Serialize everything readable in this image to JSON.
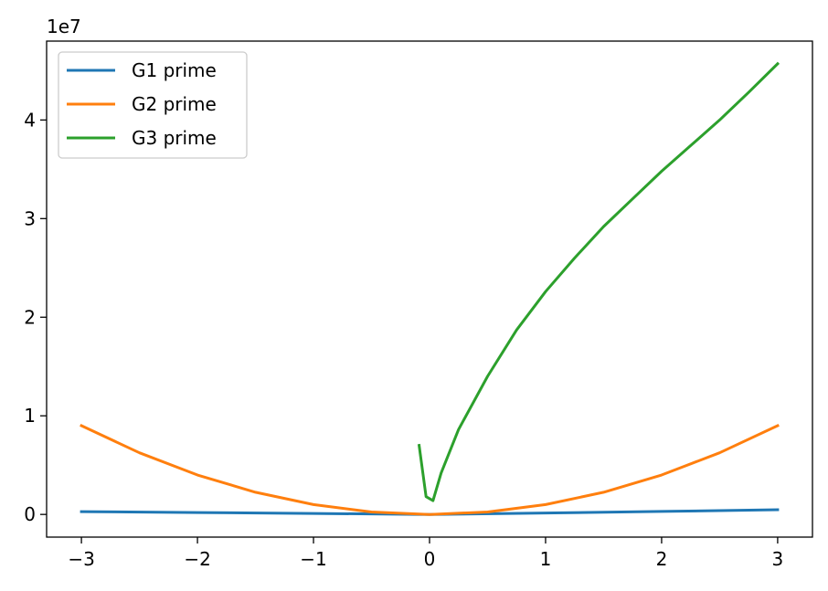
{
  "chart_data": {
    "type": "line",
    "title": "",
    "xlabel": "",
    "ylabel": "",
    "y_offset_label": "1e7",
    "xlim": [
      -3.3,
      3.3
    ],
    "ylim": [
      -2300000,
      48000000
    ],
    "x_ticks": [
      -3,
      -2,
      -1,
      0,
      1,
      2,
      3
    ],
    "x_tick_labels": [
      "−3",
      "−2",
      "−1",
      "0",
      "1",
      "2",
      "3"
    ],
    "y_ticks": [
      0,
      10000000,
      20000000,
      30000000,
      40000000
    ],
    "y_tick_labels": [
      "0",
      "1",
      "2",
      "3",
      "4"
    ],
    "grid": false,
    "legend_position": "top-left",
    "series": [
      {
        "name": "G1 prime",
        "color": "#1f77b4",
        "x": [
          -3,
          -2,
          -1,
          0,
          1,
          2,
          3
        ],
        "y": [
          280000,
          190000,
          100000,
          0,
          150000,
          300000,
          480000
        ]
      },
      {
        "name": "G2 prime",
        "color": "#ff7f0e",
        "x": [
          -3,
          -2.5,
          -2,
          -1.5,
          -1,
          -0.5,
          0,
          0.5,
          1,
          1.5,
          2,
          2.5,
          3
        ],
        "y": [
          9000000,
          6250000,
          4000000,
          2250000,
          1000000,
          250000,
          0,
          250000,
          1000000,
          2250000,
          4000000,
          6250000,
          9000000
        ]
      },
      {
        "name": "G3 prime",
        "color": "#2ca02c",
        "x": [
          -0.09,
          -0.03,
          0.03,
          0.1,
          0.25,
          0.5,
          0.75,
          1,
          1.25,
          1.5,
          1.75,
          2,
          2.25,
          2.5,
          2.75,
          3
        ],
        "y": [
          7000000,
          1800000,
          1400000,
          4200000,
          8600000,
          14000000,
          18700000,
          22600000,
          26000000,
          29200000,
          32000000,
          34800000,
          37400000,
          40000000,
          42800000,
          45700000
        ]
      }
    ]
  }
}
